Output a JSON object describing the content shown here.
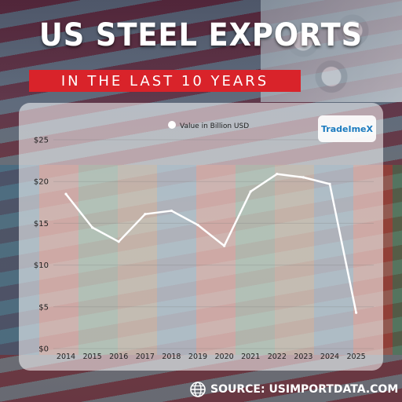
{
  "title": "US STEEL EXPORTS",
  "subtitle": "IN THE LAST 10 YEARS",
  "logo_text": "TradeImeX",
  "source_text": "SOURCE: USIMPORTDATA.COM",
  "colors": {
    "accent": "#d9232a",
    "line": "#ffffff",
    "logo": "#1c7bbf"
  },
  "chart_data": {
    "type": "line",
    "title": "",
    "xlabel": "",
    "ylabel": "",
    "legend": "top-center",
    "grid": true,
    "categories": [
      "2014",
      "2015",
      "2016",
      "2017",
      "2018",
      "2019",
      "2020",
      "2021",
      "2022",
      "2023",
      "2024",
      "2025"
    ],
    "y_ticks": [
      "$0",
      "$5",
      "$10",
      "$15",
      "$20",
      "$25"
    ],
    "ylim": [
      0,
      25
    ],
    "series": [
      {
        "name": "Value in Billion USD",
        "values": [
          18.5,
          14.5,
          12.8,
          16.1,
          16.5,
          14.8,
          12.3,
          18.8,
          20.9,
          20.5,
          19.7,
          4.3
        ]
      }
    ]
  }
}
